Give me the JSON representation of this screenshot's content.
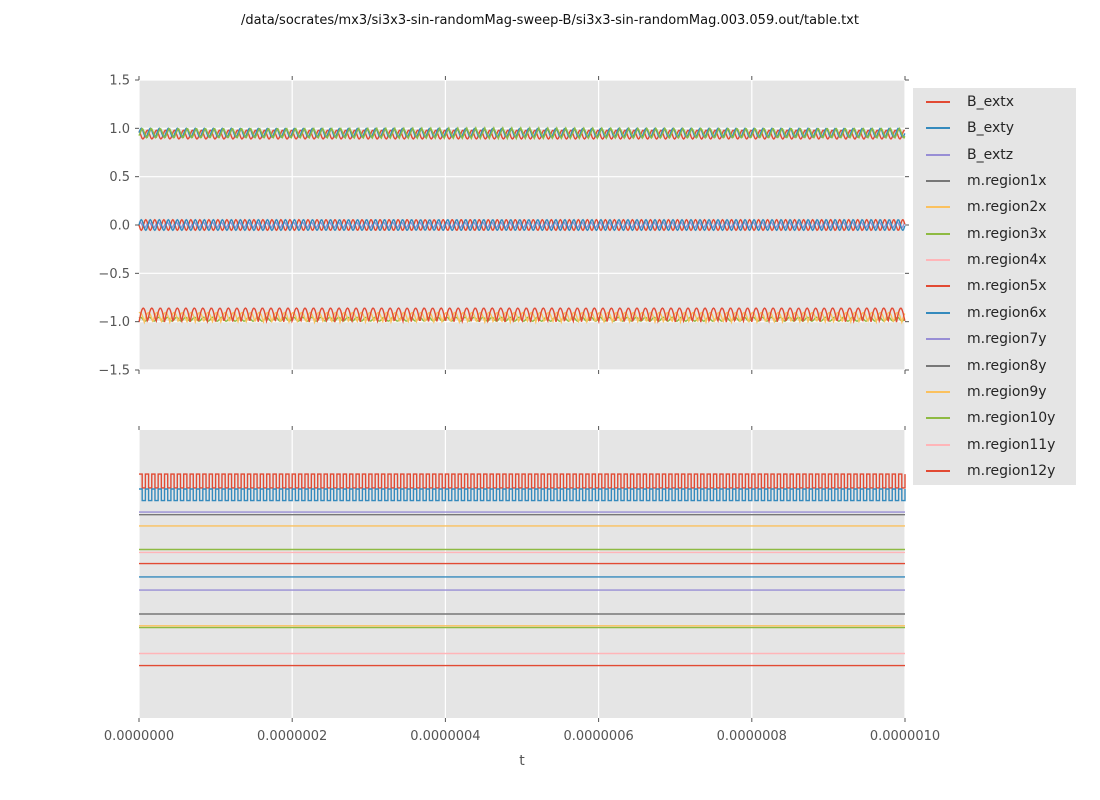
{
  "title": "/data/socrates/mx3/si3x3-sin-randomMag-sweep-B/si3x3-sin-randomMag.003.059.out/table.txt",
  "xlabel": "t",
  "styles": {
    "axes_bg": "#e5e5e5",
    "grid_color": "#ffffff",
    "tick_color": "#555555",
    "tick_label_color": "#555555",
    "title_color": "#111111",
    "legend_bg": "#e5e5e5",
    "legend_text_color": "#262626"
  },
  "palette": {
    "red": "#E24A33",
    "blue": "#348ABD",
    "purple": "#988ED5",
    "gray": "#777777",
    "orange": "#FBC15E",
    "green": "#8EBA42",
    "pink": "#FFB5B8"
  },
  "legend": {
    "entries": [
      {
        "label": "B_extx",
        "color": "#E24A33"
      },
      {
        "label": "B_exty",
        "color": "#348ABD"
      },
      {
        "label": "B_extz",
        "color": "#988ED5"
      },
      {
        "label": "m.region1x",
        "color": "#777777"
      },
      {
        "label": "m.region2x",
        "color": "#FBC15E"
      },
      {
        "label": "m.region3x",
        "color": "#8EBA42"
      },
      {
        "label": "m.region4x",
        "color": "#FFB5B8"
      },
      {
        "label": "m.region5x",
        "color": "#E24A33"
      },
      {
        "label": "m.region6x",
        "color": "#348ABD"
      },
      {
        "label": "m.region7y",
        "color": "#988ED5"
      },
      {
        "label": "m.region8y",
        "color": "#777777"
      },
      {
        "label": "m.region9y",
        "color": "#FBC15E"
      },
      {
        "label": "m.region10y",
        "color": "#8EBA42"
      },
      {
        "label": "m.region11y",
        "color": "#FFB5B8"
      },
      {
        "label": "m.region12y",
        "color": "#E24A33"
      }
    ]
  },
  "chart_data": [
    {
      "id": "top",
      "type": "line",
      "grid": true,
      "xlim": [
        0,
        1e-06
      ],
      "ylim": [
        -1.5,
        1.5
      ],
      "x_ticks": [
        0,
        2e-07,
        4e-07,
        6e-07,
        8e-07,
        1e-06
      ],
      "y_ticks": [
        1.5,
        1.0,
        0.5,
        0.0,
        -0.5,
        -1.0,
        -1.5
      ],
      "y_tick_labels": [
        "1.5",
        "1.0",
        "0.5",
        "0.0",
        "−0.5",
        "−1.0",
        "−1.5"
      ],
      "series": [
        {
          "name": "m.region5x",
          "color": "#E24A33",
          "waveform": "sine",
          "center": 0.935,
          "amplitude": 0.045,
          "cycles": 85,
          "phase": 2.0
        },
        {
          "name": "m.region6x",
          "color": "#348ABD",
          "waveform": "sine",
          "center": 0.955,
          "amplitude": 0.045,
          "cycles": 85,
          "phase": 0.0
        },
        {
          "name": "m.region3x",
          "color": "#8EBA42",
          "waveform": "triangle",
          "center": 0.95,
          "amplitude": 0.055,
          "cycles": 85,
          "phase": 4.0
        },
        {
          "name": "B_extz",
          "color": "#988ED5",
          "waveform": "sine",
          "center": 0.0,
          "amplitude": 0.03,
          "cycles": 85,
          "phase": 1.0
        },
        {
          "name": "B_extx",
          "color": "#E24A33",
          "waveform": "sine",
          "center": 0.0,
          "amplitude": 0.055,
          "cycles": 85,
          "phase": 3.14
        },
        {
          "name": "B_exty",
          "color": "#348ABD",
          "waveform": "sine",
          "center": 0.0,
          "amplitude": 0.055,
          "cycles": 85,
          "phase": 0.0
        },
        {
          "name": "m.region10y",
          "color": "#8EBA42",
          "waveform": "sine",
          "center": -0.975,
          "amplitude": 0.02,
          "cycles": 85,
          "phase": 0.5
        },
        {
          "name": "m.region9y",
          "color": "#FBC15E",
          "waveform": "spike",
          "base": -1.005,
          "amplitude": 0.1,
          "cycles": 90,
          "phase": 1.2
        },
        {
          "name": "m.region12y",
          "color": "#E24A33",
          "waveform": "spike",
          "base": -1.005,
          "amplitude": 0.145,
          "cycles": 90,
          "phase": 0.0
        }
      ]
    },
    {
      "id": "bottom",
      "type": "line",
      "grid": true,
      "xlim": [
        0,
        1e-06
      ],
      "ylim": [
        0,
        1
      ],
      "x_ticks": [
        0,
        2e-07,
        4e-07,
        6e-07,
        8e-07,
        1e-06
      ],
      "x_tick_labels": [
        "0.0000000",
        "0.0000002",
        "0.0000004",
        "0.0000006",
        "0.0000008",
        "0.0000010"
      ],
      "y_ticks": [],
      "y_tick_labels": [],
      "series": [
        {
          "name": "m.region5x",
          "color": "#E24A33",
          "waveform": "square",
          "high": 0.847,
          "low": 0.799,
          "cycles": 120
        },
        {
          "name": "m.region6x",
          "color": "#348ABD",
          "waveform": "square",
          "high": 0.795,
          "low": 0.755,
          "cycles": 120
        },
        {
          "name": "m.region7y",
          "color": "#988ED5",
          "waveform": "flat",
          "value": 0.715
        },
        {
          "name": "m.region8y",
          "color": "#777777",
          "waveform": "flat",
          "value": 0.706
        },
        {
          "name": "m.region2x",
          "color": "#FBC15E",
          "waveform": "flat",
          "value": 0.667
        },
        {
          "name": "m.region3x",
          "color": "#8EBA42",
          "waveform": "flat",
          "value": 0.585
        },
        {
          "name": "m.region4x",
          "color": "#FFB5B8",
          "waveform": "flat",
          "value": 0.575
        },
        {
          "name": "m.region12y",
          "color": "#E24A33",
          "waveform": "flat",
          "value": 0.536
        },
        {
          "name": "B_exty",
          "color": "#348ABD",
          "waveform": "flat",
          "value": 0.49
        },
        {
          "name": "B_extz",
          "color": "#988ED5",
          "waveform": "flat",
          "value": 0.444
        },
        {
          "name": "m.region1x",
          "color": "#777777",
          "waveform": "flat",
          "value": 0.361
        },
        {
          "name": "m.region9y",
          "color": "#FBC15E",
          "waveform": "flat",
          "value": 0.32
        },
        {
          "name": "m.region10y",
          "color": "#8EBA42",
          "waveform": "flat",
          "value": 0.314
        },
        {
          "name": "m.region11y",
          "color": "#FFB5B8",
          "waveform": "flat",
          "value": 0.224
        },
        {
          "name": "B_extx",
          "color": "#E24A33",
          "waveform": "flat",
          "value": 0.182
        }
      ]
    }
  ]
}
